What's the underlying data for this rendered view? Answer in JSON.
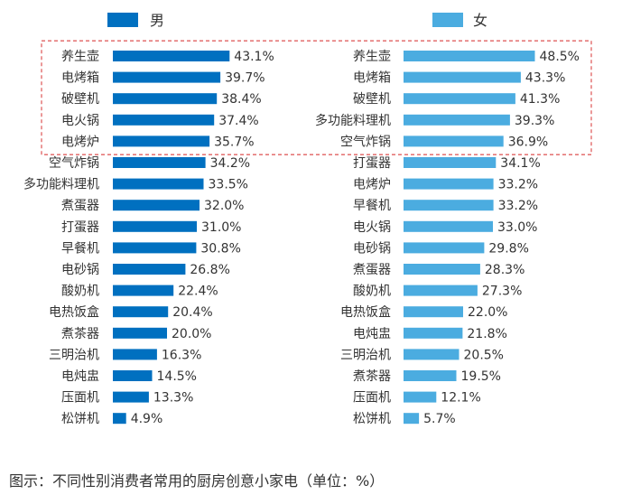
{
  "caption": "图示：不同性别消费者常用的厨房创意小家电（单位：%）",
  "colors": {
    "male": "#0070C0",
    "female": "#4BACE0",
    "highlight_box": "#E06060",
    "text": "#333333"
  },
  "chart_data": [
    {
      "type": "bar",
      "orientation": "horizontal",
      "legend": "男",
      "legend_position": "top",
      "unit": "%",
      "highlighted_top": 5,
      "categories": [
        "养生壶",
        "电烤箱",
        "破壁机",
        "电火锅",
        "电烤炉",
        "空气炸锅",
        "多功能料理机",
        "煮蛋器",
        "打蛋器",
        "早餐机",
        "电砂锅",
        "酸奶机",
        "电热饭盒",
        "煮茶器",
        "三明治机",
        "电炖盅",
        "压面机",
        "松饼机"
      ],
      "values": [
        43.1,
        39.7,
        38.4,
        37.4,
        35.7,
        34.2,
        33.5,
        32.0,
        31.0,
        30.8,
        26.8,
        22.4,
        20.4,
        20.0,
        16.3,
        14.5,
        13.3,
        4.9
      ],
      "labels": [
        "43.1%",
        "39.7%",
        "38.4%",
        "37.4%",
        "35.7%",
        "34.2%",
        "33.5%",
        "32.0%",
        "31.0%",
        "30.8%",
        "26.8%",
        "22.4%",
        "20.4%",
        "20.0%",
        "16.3%",
        "14.5%",
        "13.3%",
        "4.9%"
      ]
    },
    {
      "type": "bar",
      "orientation": "horizontal",
      "legend": "女",
      "legend_position": "top",
      "unit": "%",
      "highlighted_top": 5,
      "categories": [
        "养生壶",
        "电烤箱",
        "破壁机",
        "多功能料理机",
        "空气炸锅",
        "打蛋器",
        "电烤炉",
        "早餐机",
        "电火锅",
        "电砂锅",
        "煮蛋器",
        "酸奶机",
        "电热饭盒",
        "电炖盅",
        "三明治机",
        "煮茶器",
        "压面机",
        "松饼机"
      ],
      "values": [
        48.5,
        43.3,
        41.3,
        39.3,
        36.9,
        34.1,
        33.2,
        33.2,
        33.0,
        29.8,
        28.3,
        27.3,
        22.0,
        21.8,
        20.5,
        19.5,
        12.1,
        5.7
      ],
      "labels": [
        "48.5%",
        "43.3%",
        "41.3%",
        "39.3%",
        "36.9%",
        "34.1%",
        "33.2%",
        "33.2%",
        "33.0%",
        "29.8%",
        "28.3%",
        "27.3%",
        "22.0%",
        "21.8%",
        "20.5%",
        "19.5%",
        "12.1%",
        "5.7%"
      ]
    }
  ]
}
